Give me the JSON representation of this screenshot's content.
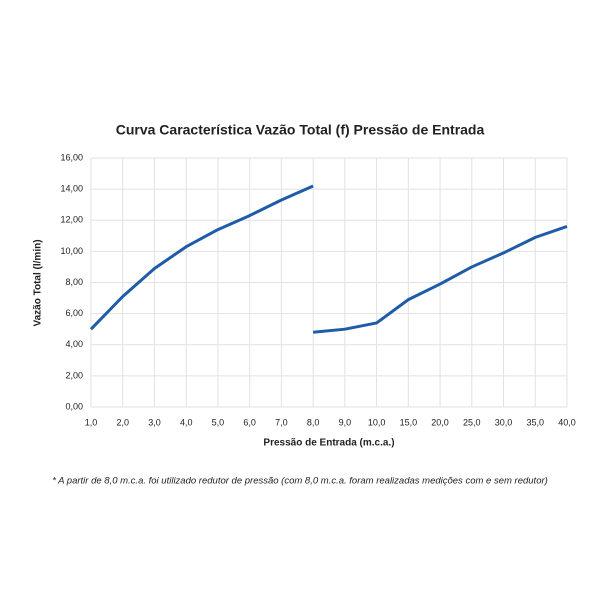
{
  "chart_data": {
    "type": "line",
    "title": "Curva Característica Vazão Total (f) Pressão de Entrada",
    "x_label": "Pressão de Entrada (m.c.a.)",
    "y_label": "Vazão Total (l/min)",
    "footnote": "* A partir de 8,0 m.c.a. foi utilizado redutor de pressão (com 8,0 m.c.a. foram realizadas medições com e sem redutor)",
    "categories": [
      "1,0",
      "2,0",
      "3,0",
      "4,0",
      "5,0",
      "6,0",
      "7,0",
      "8,0",
      "9,0",
      "10,0",
      "15,0",
      "20,0",
      "25,0",
      "30,0",
      "35,0",
      "40,0"
    ],
    "series": [
      {
        "color": "#1f5ca8",
        "values": [
          5.0,
          7.1,
          8.9,
          10.3,
          11.4,
          12.3,
          13.3,
          14.2,
          null,
          null,
          null,
          null,
          null,
          null,
          null,
          null
        ]
      },
      {
        "color": "#1f5ca8",
        "values": [
          null,
          null,
          null,
          null,
          null,
          null,
          null,
          4.8,
          5.0,
          5.4,
          6.9,
          7.9,
          9.0,
          9.9,
          10.9,
          11.6
        ]
      }
    ],
    "ylim": [
      0,
      16
    ],
    "yticks": [
      {
        "value": 0,
        "label": "0,00"
      },
      {
        "value": 2,
        "label": "2,00"
      },
      {
        "value": 4,
        "label": "4,00"
      },
      {
        "value": 6,
        "label": "6,00"
      },
      {
        "value": 8,
        "label": "8,00"
      },
      {
        "value": 10,
        "label": "10,00"
      },
      {
        "value": 12,
        "label": "12,00"
      },
      {
        "value": 14,
        "label": "14,00"
      },
      {
        "value": 16,
        "label": "16,00"
      }
    ],
    "grid": true
  }
}
